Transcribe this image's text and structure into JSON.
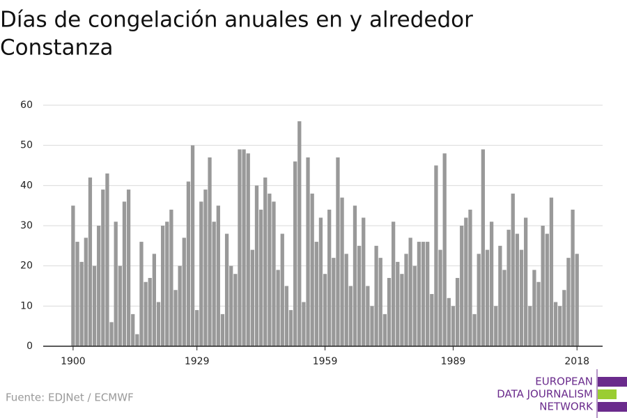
{
  "chart_data": {
    "type": "bar",
    "title_lines": [
      "Días de congelación anuales en y alrededor",
      "Constanza"
    ],
    "source": "Fuente: EDJNet / ECMWF",
    "logo": [
      "EUROPEAN",
      "DATA JOURNALISM",
      "NETWORK"
    ],
    "color": "#999999",
    "grid": true,
    "x": [
      1900,
      1901,
      1902,
      1903,
      1904,
      1905,
      1906,
      1907,
      1908,
      1909,
      1910,
      1911,
      1912,
      1913,
      1914,
      1915,
      1916,
      1917,
      1918,
      1919,
      1920,
      1921,
      1922,
      1923,
      1924,
      1925,
      1926,
      1927,
      1928,
      1929,
      1930,
      1931,
      1932,
      1933,
      1934,
      1935,
      1936,
      1937,
      1938,
      1939,
      1940,
      1941,
      1942,
      1943,
      1944,
      1945,
      1946,
      1947,
      1948,
      1949,
      1950,
      1951,
      1952,
      1953,
      1954,
      1955,
      1956,
      1957,
      1958,
      1959,
      1960,
      1961,
      1962,
      1963,
      1964,
      1965,
      1966,
      1967,
      1968,
      1969,
      1970,
      1971,
      1972,
      1973,
      1974,
      1975,
      1976,
      1977,
      1978,
      1979,
      1980,
      1981,
      1982,
      1983,
      1984,
      1985,
      1986,
      1987,
      1988,
      1989,
      1990,
      1991,
      1992,
      1993,
      1994,
      1995,
      1996,
      1997,
      1998,
      1999,
      2000,
      2001,
      2002,
      2003,
      2004,
      2005,
      2006,
      2007,
      2008,
      2009,
      2010,
      2011,
      2012,
      2013,
      2014,
      2015,
      2016,
      2017,
      2018
    ],
    "values": [
      35,
      26,
      21,
      27,
      42,
      20,
      30,
      39,
      43,
      6,
      31,
      20,
      36,
      39,
      8,
      3,
      26,
      16,
      17,
      23,
      11,
      30,
      31,
      34,
      14,
      20,
      27,
      41,
      50,
      9,
      36,
      39,
      47,
      31,
      35,
      8,
      28,
      20,
      18,
      49,
      49,
      48,
      24,
      40,
      34,
      42,
      38,
      36,
      19,
      28,
      15,
      9,
      46,
      56,
      11,
      47,
      38,
      26,
      32,
      18,
      34,
      22,
      47,
      37,
      23,
      15,
      35,
      25,
      32,
      15,
      10,
      25,
      22,
      8,
      17,
      31,
      21,
      18,
      23,
      27,
      20,
      26,
      26,
      26,
      13,
      45,
      24,
      48,
      12,
      10,
      17,
      30,
      32,
      34,
      8,
      23,
      49,
      24,
      31,
      10,
      25,
      19,
      29,
      38,
      28,
      24,
      32,
      10,
      19,
      16,
      30,
      28,
      37,
      11,
      10,
      14,
      22,
      34,
      23
    ],
    "xlim": [
      1893,
      2024
    ],
    "xticks": [
      1900,
      1929,
      1959,
      1989,
      2018
    ],
    "ylim": [
      0,
      60
    ],
    "yticks": [
      0,
      10,
      20,
      30,
      40,
      50,
      60
    ]
  }
}
